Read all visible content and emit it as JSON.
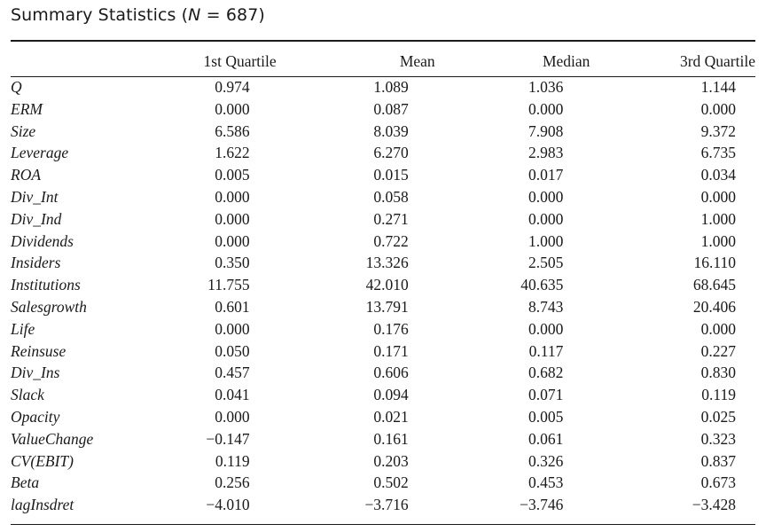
{
  "caption": {
    "prefix": "Summary Statistics (",
    "n_symbol": "N",
    "equals": " = ",
    "n_value": "687",
    "suffix": ")"
  },
  "table": {
    "columns": [
      "",
      "1st Quartile",
      "Mean",
      "Median",
      "3rd Quartile"
    ],
    "rows": [
      {
        "label": "Q",
        "q1": "0.974",
        "mean": "1.089",
        "median": "1.036",
        "q3": "1.144"
      },
      {
        "label": "ERM",
        "q1": "0.000",
        "mean": "0.087",
        "median": "0.000",
        "q3": "0.000"
      },
      {
        "label": "Size",
        "q1": "6.586",
        "mean": "8.039",
        "median": "7.908",
        "q3": "9.372"
      },
      {
        "label": "Leverage",
        "q1": "1.622",
        "mean": "6.270",
        "median": "2.983",
        "q3": "6.735"
      },
      {
        "label": "ROA",
        "q1": "0.005",
        "mean": "0.015",
        "median": "0.017",
        "q3": "0.034"
      },
      {
        "label": "Div_Int",
        "q1": "0.000",
        "mean": "0.058",
        "median": "0.000",
        "q3": "0.000"
      },
      {
        "label": "Div_Ind",
        "q1": "0.000",
        "mean": "0.271",
        "median": "0.000",
        "q3": "1.000"
      },
      {
        "label": "Dividends",
        "q1": "0.000",
        "mean": "0.722",
        "median": "1.000",
        "q3": "1.000"
      },
      {
        "label": "Insiders",
        "q1": "0.350",
        "mean": "13.326",
        "median": "2.505",
        "q3": "16.110"
      },
      {
        "label": "Institutions",
        "q1": "11.755",
        "mean": "42.010",
        "median": "40.635",
        "q3": "68.645"
      },
      {
        "label": "Salesgrowth",
        "q1": "0.601",
        "mean": "13.791",
        "median": "8.743",
        "q3": "20.406"
      },
      {
        "label": "Life",
        "q1": "0.000",
        "mean": "0.176",
        "median": "0.000",
        "q3": "0.000"
      },
      {
        "label": "Reinsuse",
        "q1": "0.050",
        "mean": "0.171",
        "median": "0.117",
        "q3": "0.227"
      },
      {
        "label": "Div_Ins",
        "q1": "0.457",
        "mean": "0.606",
        "median": "0.682",
        "q3": "0.830"
      },
      {
        "label": "Slack",
        "q1": "0.041",
        "mean": "0.094",
        "median": "0.071",
        "q3": "0.119"
      },
      {
        "label": "Opacity",
        "q1": "0.000",
        "mean": "0.021",
        "median": "0.005",
        "q3": "0.025"
      },
      {
        "label": "ValueChange",
        "q1": "−0.147",
        "mean": "0.161",
        "median": "0.061",
        "q3": "0.323"
      },
      {
        "label": "CV(EBIT)",
        "q1": "0.119",
        "mean": "0.203",
        "median": "0.326",
        "q3": "0.837"
      },
      {
        "label": "Beta",
        "q1": "0.256",
        "mean": "0.502",
        "median": "0.453",
        "q3": "0.673"
      },
      {
        "label": "lagInsdret",
        "q1": "−4.010",
        "mean": "−3.716",
        "median": "−3.746",
        "q3": "−3.428"
      }
    ]
  }
}
